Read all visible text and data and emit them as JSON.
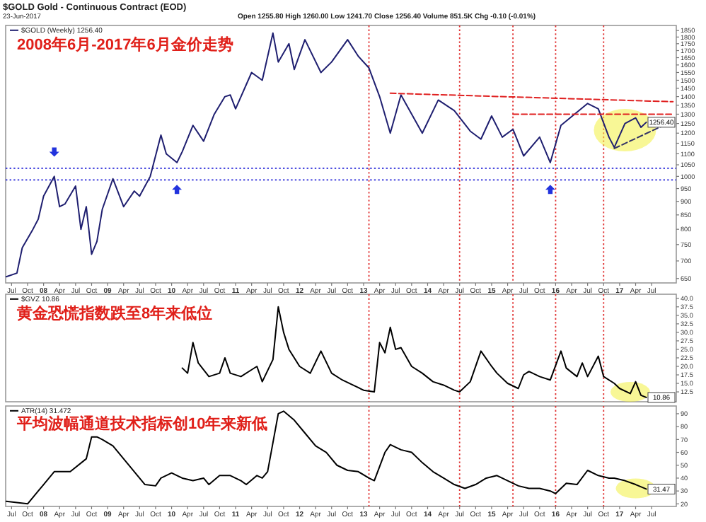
{
  "chart_data": [
    {
      "type": "line",
      "title": "2008年6月-2017年6月金价走势",
      "legend": "top left",
      "log": true,
      "annotations": [
        "$GOLD Gold - Continuous Contract (EOD)",
        "23-Jun-2017",
        "Open 1255.80 High 1260.00 Low 1241.70 Close 1256.40 Volume 851.5K Chg -0.10 (-0.01%)",
        {
          "text": "1256.40",
          "y": 1256.4
        }
      ],
      "xlim": [
        "2007-05-28",
        "2017-11-20"
      ],
      "ylim": [
        638,
        1890
      ],
      "yticks": [
        650,
        700,
        750,
        800,
        850,
        900,
        950,
        1000,
        1050,
        1100,
        1150,
        1200,
        1250,
        1300,
        1350,
        1400,
        1450,
        1500,
        1550,
        1600,
        1650,
        1700,
        1750,
        1800,
        1850
      ],
      "xticks": [
        {
          "value": "2007-07",
          "label": "Jul"
        },
        {
          "value": "2007-10",
          "label": "Oct"
        },
        {
          "value": "2008-01",
          "label": "08"
        },
        {
          "value": "2008-04",
          "label": "Apr"
        },
        {
          "value": "2008-07",
          "label": "Jul"
        },
        {
          "value": "2008-10",
          "label": "Oct"
        },
        {
          "value": "2009-01",
          "label": "09"
        },
        {
          "value": "2009-04",
          "label": "Apr"
        },
        {
          "value": "2009-07",
          "label": "Jul"
        },
        {
          "value": "2009-10",
          "label": "Oct"
        },
        {
          "value": "2010-01",
          "label": "10"
        },
        {
          "value": "2010-04",
          "label": "Apr"
        },
        {
          "value": "2010-07",
          "label": "Jul"
        },
        {
          "value": "2010-10",
          "label": "Oct"
        },
        {
          "value": "2011-01",
          "label": "11"
        },
        {
          "value": "2011-04",
          "label": "Apr"
        },
        {
          "value": "2011-07",
          "label": "Jul"
        },
        {
          "value": "2011-10",
          "label": "Oct"
        },
        {
          "value": "2012-01",
          "label": "12"
        },
        {
          "value": "2012-04",
          "label": "Apr"
        },
        {
          "value": "2012-07",
          "label": "Jul"
        },
        {
          "value": "2012-10",
          "label": "Oct"
        },
        {
          "value": "2013-01",
          "label": "13"
        },
        {
          "value": "2013-04",
          "label": "Apr"
        },
        {
          "value": "2013-07",
          "label": "Jul"
        },
        {
          "value": "2013-10",
          "label": "Oct"
        },
        {
          "value": "2014-01",
          "label": "14"
        },
        {
          "value": "2014-04",
          "label": "Apr"
        },
        {
          "value": "2014-07",
          "label": "Jul"
        },
        {
          "value": "2014-10",
          "label": "Oct"
        },
        {
          "value": "2015-01",
          "label": "15"
        },
        {
          "value": "2015-04",
          "label": "Apr"
        },
        {
          "value": "2015-07",
          "label": "Jul"
        },
        {
          "value": "2015-10",
          "label": "Oct"
        },
        {
          "value": "2016-01",
          "label": "16"
        },
        {
          "value": "2016-04",
          "label": "Apr"
        },
        {
          "value": "2016-07",
          "label": "Jul"
        },
        {
          "value": "2016-10",
          "label": "Oct"
        },
        {
          "value": "2017-01",
          "label": "17"
        },
        {
          "value": "2017-04",
          "label": "Apr"
        },
        {
          "value": "2017-07",
          "label": "Jul"
        }
      ],
      "ref_lines": [
        {
          "axis": "y",
          "value": 1035,
          "color": "#2424d8",
          "line_style": "dotted"
        },
        {
          "axis": "y",
          "value": 985,
          "color": "#2424d8",
          "line_style": "dotted"
        },
        {
          "axis": "x",
          "value": "2013-02",
          "color": "#e03030",
          "line_style": "dotted"
        },
        {
          "axis": "x",
          "value": "2014-07",
          "color": "#e03030",
          "line_style": "dotted"
        },
        {
          "axis": "x",
          "value": "2015-05",
          "color": "#e03030",
          "line_style": "dotted"
        },
        {
          "axis": "x",
          "value": "2016-01",
          "color": "#e03030",
          "line_style": "dotted"
        },
        {
          "axis": "x",
          "value": "2016-10",
          "color": "#e03030",
          "line_style": "dotted"
        }
      ],
      "series": [
        {
          "name": "$GOLD (Weekly) 1256.40",
          "color": "#1f1f70",
          "x": [
            "2007-06",
            "2007-08",
            "2007-09",
            "2007-11",
            "2007-12",
            "2008-01",
            "2008-03",
            "2008-04",
            "2008-05",
            "2008-07",
            "2008-08",
            "2008-09",
            "2008-10",
            "2008-11",
            "2008-12",
            "2009-02",
            "2009-04",
            "2009-06",
            "2009-07",
            "2009-09",
            "2009-11",
            "2009-12",
            "2010-02",
            "2010-03",
            "2010-05",
            "2010-07",
            "2010-09",
            "2010-11",
            "2010-12",
            "2011-01",
            "2011-04",
            "2011-06",
            "2011-08",
            "2011-09",
            "2011-11",
            "2011-12",
            "2012-02",
            "2012-05",
            "2012-07",
            "2012-10",
            "2012-12",
            "2013-02",
            "2013-04",
            "2013-06",
            "2013-08",
            "2013-12",
            "2014-03",
            "2014-06",
            "2014-09",
            "2014-11",
            "2015-01",
            "2015-03",
            "2015-05",
            "2015-07",
            "2015-10",
            "2015-12",
            "2016-02",
            "2016-07",
            "2016-09",
            "2016-11",
            "2016-12",
            "2017-02",
            "2017-04",
            "2017-05",
            "2017-06"
          ],
          "values": [
            655,
            665,
            740,
            800,
            835,
            920,
            1000,
            880,
            890,
            960,
            800,
            880,
            720,
            760,
            870,
            990,
            880,
            940,
            920,
            1000,
            1190,
            1100,
            1060,
            1110,
            1240,
            1160,
            1300,
            1400,
            1410,
            1330,
            1550,
            1500,
            1830,
            1620,
            1750,
            1570,
            1780,
            1550,
            1620,
            1780,
            1660,
            1580,
            1400,
            1200,
            1410,
            1200,
            1380,
            1320,
            1210,
            1170,
            1290,
            1180,
            1220,
            1090,
            1180,
            1060,
            1240,
            1360,
            1330,
            1180,
            1130,
            1250,
            1280,
            1230,
            1256.4
          ]
        },
        {
          "color": "#e02020",
          "line_style": "dashed",
          "x": [
            "2013-06",
            "2017-11"
          ],
          "values": [
            1420,
            1370
          ]
        },
        {
          "color": "#e02020",
          "line_style": "dashed",
          "x": [
            "2015-05",
            "2017-11"
          ],
          "values": [
            1300,
            1300
          ]
        },
        {
          "color": "#333366",
          "line_style": "dashed",
          "x": [
            "2016-12",
            "2017-10"
          ],
          "values": [
            1125,
            1250
          ]
        }
      ]
    },
    {
      "type": "line",
      "title": "黄金恐慌指数跌至8年来低位",
      "legend": "top left",
      "tick_labels": "y",
      "annotations": [
        {
          "text": "10.86",
          "y": 10.86
        }
      ],
      "xlim": [
        "2007-05-28",
        "2017-11-20"
      ],
      "ylim": [
        9.6,
        41.2
      ],
      "yticks": [
        {
          "value": 12.5,
          "label": "12.5"
        },
        {
          "value": 15,
          "label": "15.0"
        },
        {
          "value": 17.5,
          "label": "17.5"
        },
        {
          "value": 20,
          "label": "20.0"
        },
        {
          "value": 22.5,
          "label": "22.5"
        },
        {
          "value": 25,
          "label": "25.0"
        },
        {
          "value": 27.5,
          "label": "27.5"
        },
        {
          "value": 30,
          "label": "30.0"
        },
        {
          "value": 32.5,
          "label": "32.5"
        },
        {
          "value": 35,
          "label": "35.0"
        },
        {
          "value": 37.5,
          "label": "37.5"
        },
        {
          "value": 40,
          "label": "40.0"
        }
      ],
      "ref_lines": [
        {
          "axis": "x",
          "value": "2013-02",
          "color": "#e03030",
          "line_style": "dotted"
        },
        {
          "axis": "x",
          "value": "2014-07",
          "color": "#e03030",
          "line_style": "dotted"
        },
        {
          "axis": "x",
          "value": "2015-05",
          "color": "#e03030",
          "line_style": "dotted"
        },
        {
          "axis": "x",
          "value": "2016-01",
          "color": "#e03030",
          "line_style": "dotted"
        },
        {
          "axis": "x",
          "value": "2016-10",
          "color": "#e03030",
          "line_style": "dotted"
        }
      ],
      "series": [
        {
          "name": "$GVZ 10.86",
          "color": "#000000",
          "x": [
            "2010-03",
            "2010-04",
            "2010-05",
            "2010-06",
            "2010-08",
            "2010-10",
            "2010-11",
            "2010-12",
            "2011-02",
            "2011-04",
            "2011-05",
            "2011-06",
            "2011-08",
            "2011-09",
            "2011-10",
            "2011-11",
            "2012-01",
            "2012-03",
            "2012-05",
            "2012-07",
            "2012-09",
            "2012-11",
            "2013-01",
            "2013-03",
            "2013-04",
            "2013-05",
            "2013-06",
            "2013-07",
            "2013-08",
            "2013-10",
            "2013-12",
            "2014-02",
            "2014-04",
            "2014-06",
            "2014-07",
            "2014-09",
            "2014-11",
            "2015-01",
            "2015-02",
            "2015-04",
            "2015-06",
            "2015-07",
            "2015-08",
            "2015-10",
            "2015-12",
            "2016-02",
            "2016-03",
            "2016-05",
            "2016-06",
            "2016-07",
            "2016-09",
            "2016-10",
            "2016-12",
            "2017-01",
            "2017-03",
            "2017-04",
            "2017-05",
            "2017-06"
          ],
          "values": [
            19.5,
            18,
            27,
            21,
            17,
            18,
            22.5,
            18,
            17,
            19,
            20,
            15.5,
            22,
            37.5,
            30,
            25,
            20,
            18,
            24.5,
            18,
            16,
            14.5,
            13,
            12.5,
            27,
            24,
            31.5,
            25,
            25.5,
            20,
            18,
            15.5,
            14.5,
            13,
            12.5,
            15.5,
            24.5,
            20,
            18,
            15,
            13.5,
            17.5,
            18.5,
            17,
            16,
            24.5,
            19.5,
            17,
            21,
            17,
            23,
            17,
            15,
            13.5,
            12,
            15.5,
            11.5,
            10.86
          ]
        }
      ]
    },
    {
      "type": "line",
      "title": "平均波幅通道技术指标创10年来新低",
      "legend": "top left",
      "annotations": [
        {
          "text": "31.47",
          "y": 31.47
        }
      ],
      "xlim": [
        "2007-05-28",
        "2017-11-20"
      ],
      "ylim": [
        18,
        96
      ],
      "yticks": [
        20,
        30,
        40,
        50,
        60,
        70,
        80,
        90
      ],
      "xticks": [
        {
          "value": "2007-07",
          "label": "Jul"
        },
        {
          "value": "2007-10",
          "label": "Oct"
        },
        {
          "value": "2008-01",
          "label": "08"
        },
        {
          "value": "2008-04",
          "label": "Apr"
        },
        {
          "value": "2008-07",
          "label": "Jul"
        },
        {
          "value": "2008-10",
          "label": "Oct"
        },
        {
          "value": "2009-01",
          "label": "09"
        },
        {
          "value": "2009-04",
          "label": "Apr"
        },
        {
          "value": "2009-07",
          "label": "Jul"
        },
        {
          "value": "2009-10",
          "label": "Oct"
        },
        {
          "value": "2010-01",
          "label": "10"
        },
        {
          "value": "2010-04",
          "label": "Apr"
        },
        {
          "value": "2010-07",
          "label": "Jul"
        },
        {
          "value": "2010-10",
          "label": "Oct"
        },
        {
          "value": "2011-01",
          "label": "11"
        },
        {
          "value": "2011-04",
          "label": "Apr"
        },
        {
          "value": "2011-07",
          "label": "Jul"
        },
        {
          "value": "2011-10",
          "label": "Oct"
        },
        {
          "value": "2012-01",
          "label": "12"
        },
        {
          "value": "2012-04",
          "label": "Apr"
        },
        {
          "value": "2012-07",
          "label": "Jul"
        },
        {
          "value": "2012-10",
          "label": "Oct"
        },
        {
          "value": "2013-01",
          "label": "13"
        },
        {
          "value": "2013-04",
          "label": "Apr"
        },
        {
          "value": "2013-07",
          "label": "Jul"
        },
        {
          "value": "2013-10",
          "label": "Oct"
        },
        {
          "value": "2014-01",
          "label": "14"
        },
        {
          "value": "2014-04",
          "label": "Apr"
        },
        {
          "value": "2014-07",
          "label": "Jul"
        },
        {
          "value": "2014-10",
          "label": "Oct"
        },
        {
          "value": "2015-01",
          "label": "15"
        },
        {
          "value": "2015-04",
          "label": "Apr"
        },
        {
          "value": "2015-07",
          "label": "Jul"
        },
        {
          "value": "2015-10",
          "label": "Oct"
        },
        {
          "value": "2016-01",
          "label": "16"
        },
        {
          "value": "2016-04",
          "label": "Apr"
        },
        {
          "value": "2016-07",
          "label": "Jul"
        },
        {
          "value": "2016-10",
          "label": "Oct"
        },
        {
          "value": "2017-01",
          "label": "17"
        },
        {
          "value": "2017-04",
          "label": "Apr"
        },
        {
          "value": "2017-07",
          "label": "Jul"
        }
      ],
      "ref_lines": [
        {
          "axis": "x",
          "value": "2013-02",
          "color": "#e03030",
          "line_style": "dotted"
        },
        {
          "axis": "x",
          "value": "2014-07",
          "color": "#e03030",
          "line_style": "dotted"
        },
        {
          "axis": "x",
          "value": "2015-05",
          "color": "#e03030",
          "line_style": "dotted"
        },
        {
          "axis": "x",
          "value": "2016-01",
          "color": "#e03030",
          "line_style": "dotted"
        },
        {
          "axis": "x",
          "value": "2016-10",
          "color": "#e03030",
          "line_style": "dotted"
        }
      ],
      "series": [
        {
          "name": "ATR(14) 31.472",
          "color": "#000000",
          "x": [
            "2007-06",
            "2007-08",
            "2007-10",
            "2007-12",
            "2008-01",
            "2008-03",
            "2008-06",
            "2008-09",
            "2008-10",
            "2008-11",
            "2008-12",
            "2009-02",
            "2009-04",
            "2009-06",
            "2009-08",
            "2009-10",
            "2009-11",
            "2010-01",
            "2010-03",
            "2010-05",
            "2010-07",
            "2010-08",
            "2010-10",
            "2010-12",
            "2011-02",
            "2011-03",
            "2011-05",
            "2011-06",
            "2011-07",
            "2011-09",
            "2011-10",
            "2011-12",
            "2012-02",
            "2012-04",
            "2012-06",
            "2012-08",
            "2012-10",
            "2012-12",
            "2013-02",
            "2013-03",
            "2013-05",
            "2013-06",
            "2013-08",
            "2013-10",
            "2013-12",
            "2014-02",
            "2014-04",
            "2014-06",
            "2014-08",
            "2014-10",
            "2014-12",
            "2015-02",
            "2015-04",
            "2015-06",
            "2015-08",
            "2015-10",
            "2015-12",
            "2016-01",
            "2016-03",
            "2016-05",
            "2016-07",
            "2016-09",
            "2016-11",
            "2016-12",
            "2017-02",
            "2017-04",
            "2017-06"
          ],
          "values": [
            22,
            21,
            20,
            30,
            35,
            45,
            45,
            55,
            72,
            72,
            70,
            65,
            55,
            45,
            35,
            34,
            40,
            44,
            40,
            38,
            40,
            35,
            42,
            42,
            38,
            35,
            42,
            40,
            45,
            90,
            92,
            85,
            75,
            65,
            60,
            50,
            46,
            45,
            40,
            38,
            60,
            66,
            62,
            60,
            52,
            45,
            40,
            35,
            32,
            35,
            40,
            42,
            38,
            34,
            32,
            32,
            30,
            28,
            36,
            35,
            46,
            42,
            40,
            40,
            38,
            35,
            31.5
          ]
        }
      ]
    }
  ]
}
